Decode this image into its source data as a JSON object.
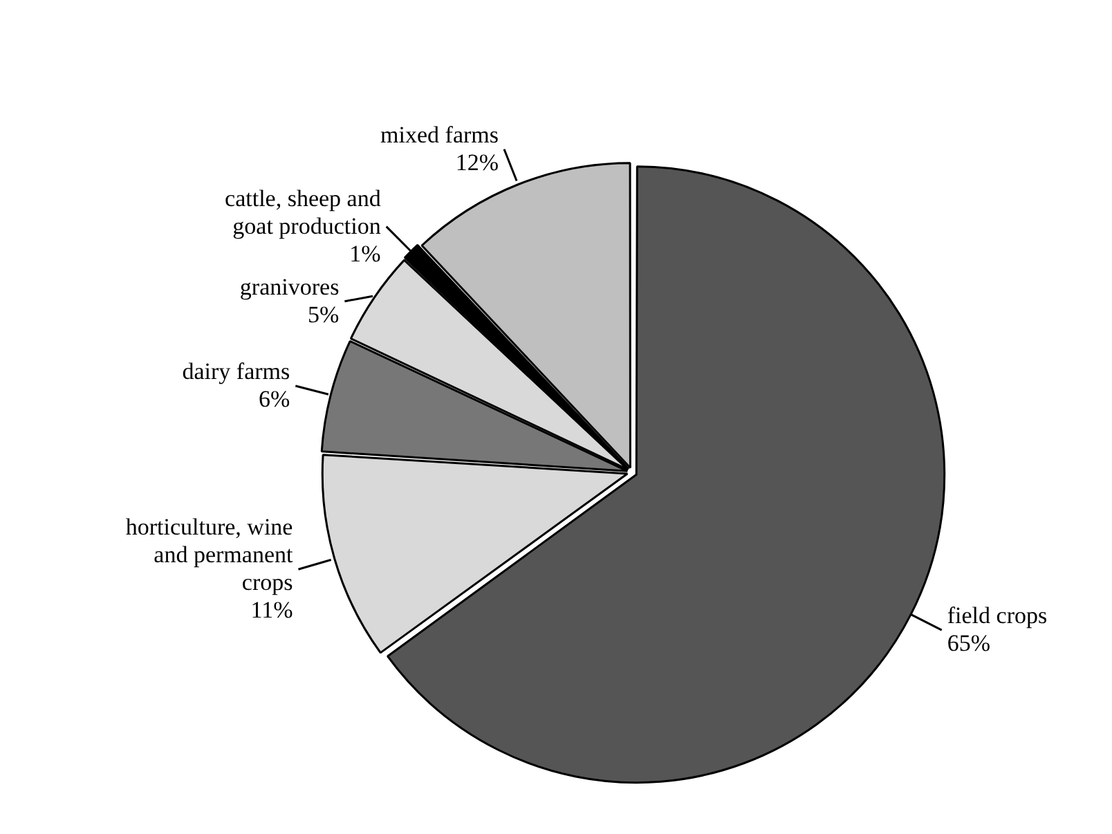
{
  "chart_data": {
    "type": "pie",
    "categories": [
      "field crops",
      "horticulture, wine and permanent crops",
      "dairy farms",
      "granivores",
      "cattle, sheep and goat production",
      "mixed farms"
    ],
    "values": [
      65,
      11,
      6,
      5,
      1,
      12
    ],
    "colors": [
      "#555555",
      "#d9d9d9",
      "#777777",
      "#d9d9d9",
      "#000000",
      "#bfbfbf"
    ],
    "value_labels": [
      "65%",
      "11%",
      "6%",
      "5%",
      "1%",
      "12%"
    ]
  }
}
